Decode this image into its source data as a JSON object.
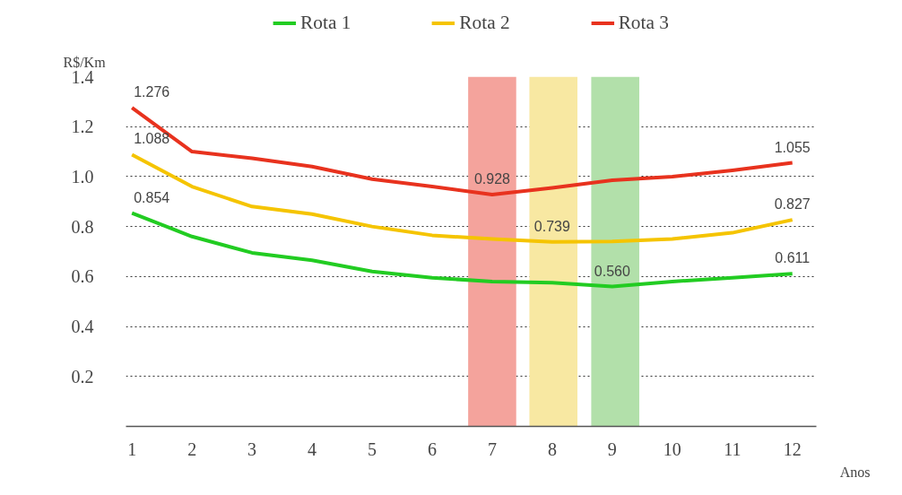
{
  "chart_data": {
    "type": "line",
    "xlabel": "Anos",
    "ylabel": "R$/Km",
    "x": [
      1,
      2,
      3,
      4,
      5,
      6,
      7,
      8,
      9,
      10,
      11,
      12
    ],
    "xlim": [
      0.9,
      12.4
    ],
    "xticks": [
      1,
      2,
      3,
      4,
      5,
      6,
      7,
      8,
      9,
      10,
      11,
      12
    ],
    "ylim": [
      0,
      1.4
    ],
    "yticks": [
      {
        "value": 0.2,
        "label": "0.2"
      },
      {
        "value": 0.4,
        "label": "0.4"
      },
      {
        "value": 0.6,
        "label": "0.6"
      },
      {
        "value": 0.8,
        "label": "0.8"
      },
      {
        "value": 1.0,
        "label": "1.0"
      },
      {
        "value": 1.2,
        "label": "1.2"
      },
      {
        "value": 1.4,
        "label": "1.4"
      }
    ],
    "grid": "y",
    "legend": "top",
    "marker": "none",
    "line_style": "solid",
    "series": [
      {
        "name": "Rota 1",
        "color": "#22cc22",
        "values": [
          0.854,
          0.76,
          0.695,
          0.665,
          0.62,
          0.595,
          0.58,
          0.575,
          0.56,
          0.58,
          0.595,
          0.611
        ],
        "value_labels": [
          "0.854",
          null,
          null,
          null,
          null,
          null,
          null,
          null,
          "0.560",
          null,
          null,
          "0.611"
        ]
      },
      {
        "name": "Rota 2",
        "color": "#f5c400",
        "values": [
          1.088,
          0.96,
          0.88,
          0.85,
          0.8,
          0.765,
          0.75,
          0.739,
          0.74,
          0.75,
          0.775,
          0.827
        ],
        "value_labels": [
          "1.088",
          null,
          null,
          null,
          null,
          null,
          null,
          "0.739",
          null,
          null,
          null,
          "0.827"
        ]
      },
      {
        "name": "Rota 3",
        "color": "#e8321e",
        "values": [
          1.276,
          1.1,
          1.073,
          1.04,
          0.99,
          0.96,
          0.928,
          0.955,
          0.985,
          1.0,
          1.025,
          1.055
        ],
        "value_labels": [
          "1.276",
          null,
          null,
          null,
          null,
          null,
          "0.928",
          null,
          null,
          null,
          null,
          "1.055"
        ]
      }
    ],
    "bands": [
      {
        "axis": "x",
        "from": 6.6,
        "to": 7.4,
        "label": null,
        "color": "#f4a39c"
      },
      {
        "axis": "x",
        "from": 7.62,
        "to": 8.42,
        "label": null,
        "color": "#f8e8a2"
      },
      {
        "axis": "x",
        "from": 8.65,
        "to": 9.45,
        "label": null,
        "color": "#b2e0aa"
      }
    ]
  }
}
